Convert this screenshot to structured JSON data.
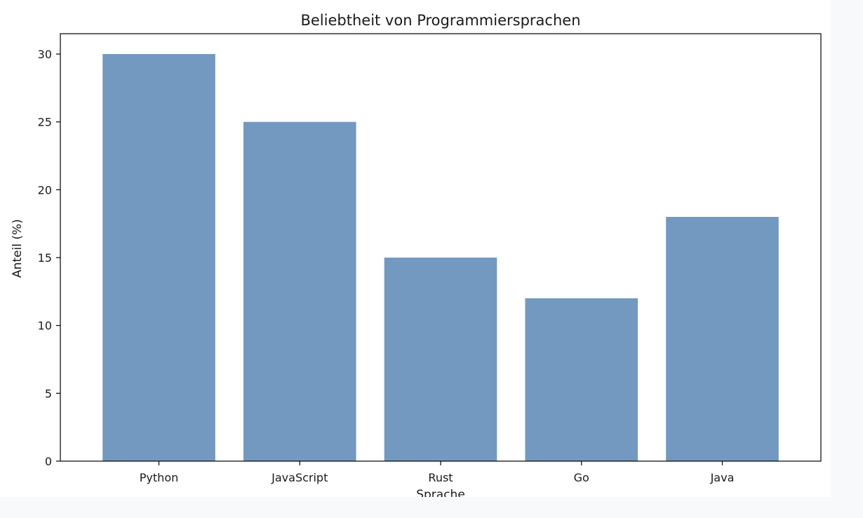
{
  "chart_data": {
    "type": "bar",
    "title": "Beliebtheit von Programmiersprachen",
    "xlabel": "Sprache",
    "ylabel": "Anteil (%)",
    "categories": [
      "Python",
      "JavaScript",
      "Rust",
      "Go",
      "Java"
    ],
    "values": [
      30,
      25,
      15,
      12,
      18
    ],
    "ylim": [
      0,
      31.5
    ],
    "yticks": [
      "0",
      "5",
      "10",
      "15",
      "20",
      "25",
      "30"
    ],
    "grid": false,
    "legend": "none",
    "bar_color": "#7399c0",
    "axis_color": "#000000"
  }
}
